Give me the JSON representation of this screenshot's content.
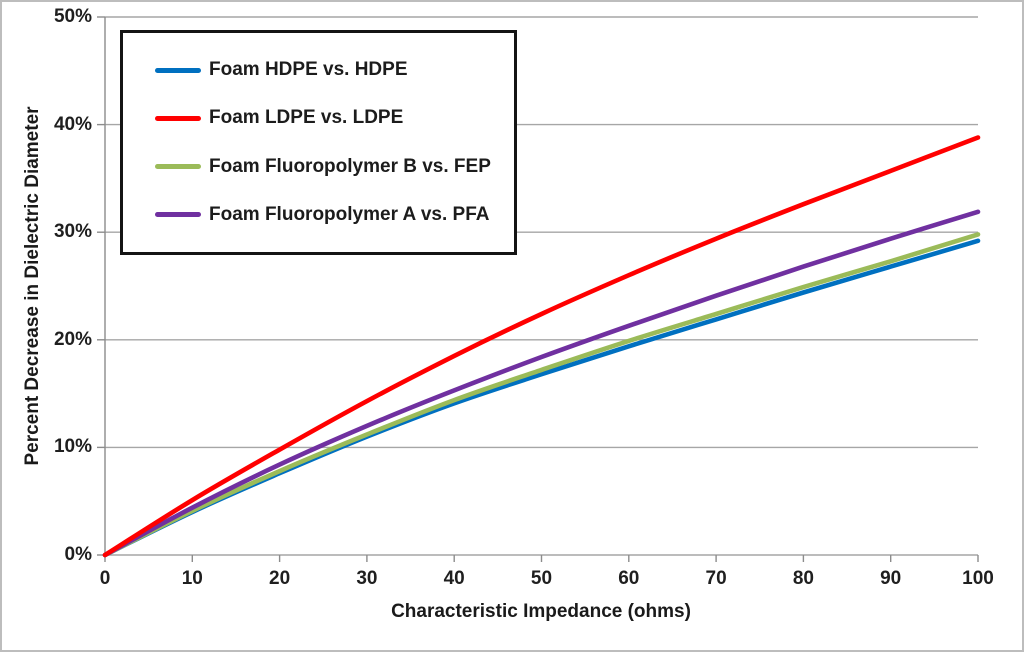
{
  "chart_data": {
    "type": "line",
    "title": "",
    "xlabel": "Characteristic Impedance (ohms)",
    "ylabel": "Percent Decrease in Dielectric Diameter",
    "xlim": [
      0,
      100
    ],
    "ylim": [
      0,
      50
    ],
    "y_unit": "percent",
    "grid": "horizontal",
    "legend_position": "top-left",
    "x_ticks": [
      0,
      10,
      20,
      30,
      40,
      50,
      60,
      70,
      80,
      90,
      100
    ],
    "y_tick_labels": [
      "0%",
      "10%",
      "20%",
      "30%",
      "40%",
      "50%"
    ],
    "x": [
      0,
      10,
      20,
      30,
      40,
      50,
      60,
      70,
      80,
      90,
      100
    ],
    "series": [
      {
        "name": "Foam HDPE vs. HDPE",
        "color": "#0070C0",
        "values": [
          0,
          4.0,
          7.6,
          11.0,
          14.1,
          16.8,
          19.4,
          21.9,
          24.4,
          26.8,
          29.2
        ]
      },
      {
        "name": "Foam LDPE vs. LDPE",
        "color": "#FF0000",
        "values": [
          0,
          5.1,
          9.8,
          14.3,
          18.5,
          22.4,
          26.0,
          29.4,
          32.6,
          35.7,
          38.8
        ]
      },
      {
        "name": "Foam Fluoropolymer B vs. FEP",
        "color": "#9BBB59",
        "values": [
          0,
          4.1,
          7.8,
          11.2,
          14.4,
          17.2,
          19.9,
          22.4,
          24.9,
          27.3,
          29.8
        ]
      },
      {
        "name": "Foam Fluoropolymer A vs. PFA",
        "color": "#7030A0",
        "values": [
          0,
          4.4,
          8.4,
          12.0,
          15.3,
          18.4,
          21.3,
          24.1,
          26.8,
          29.4,
          31.9
        ]
      }
    ],
    "colors": {
      "gridline": "#a6a6a6",
      "axis": "#8c8c8c",
      "text": "#1a1a1a"
    }
  }
}
